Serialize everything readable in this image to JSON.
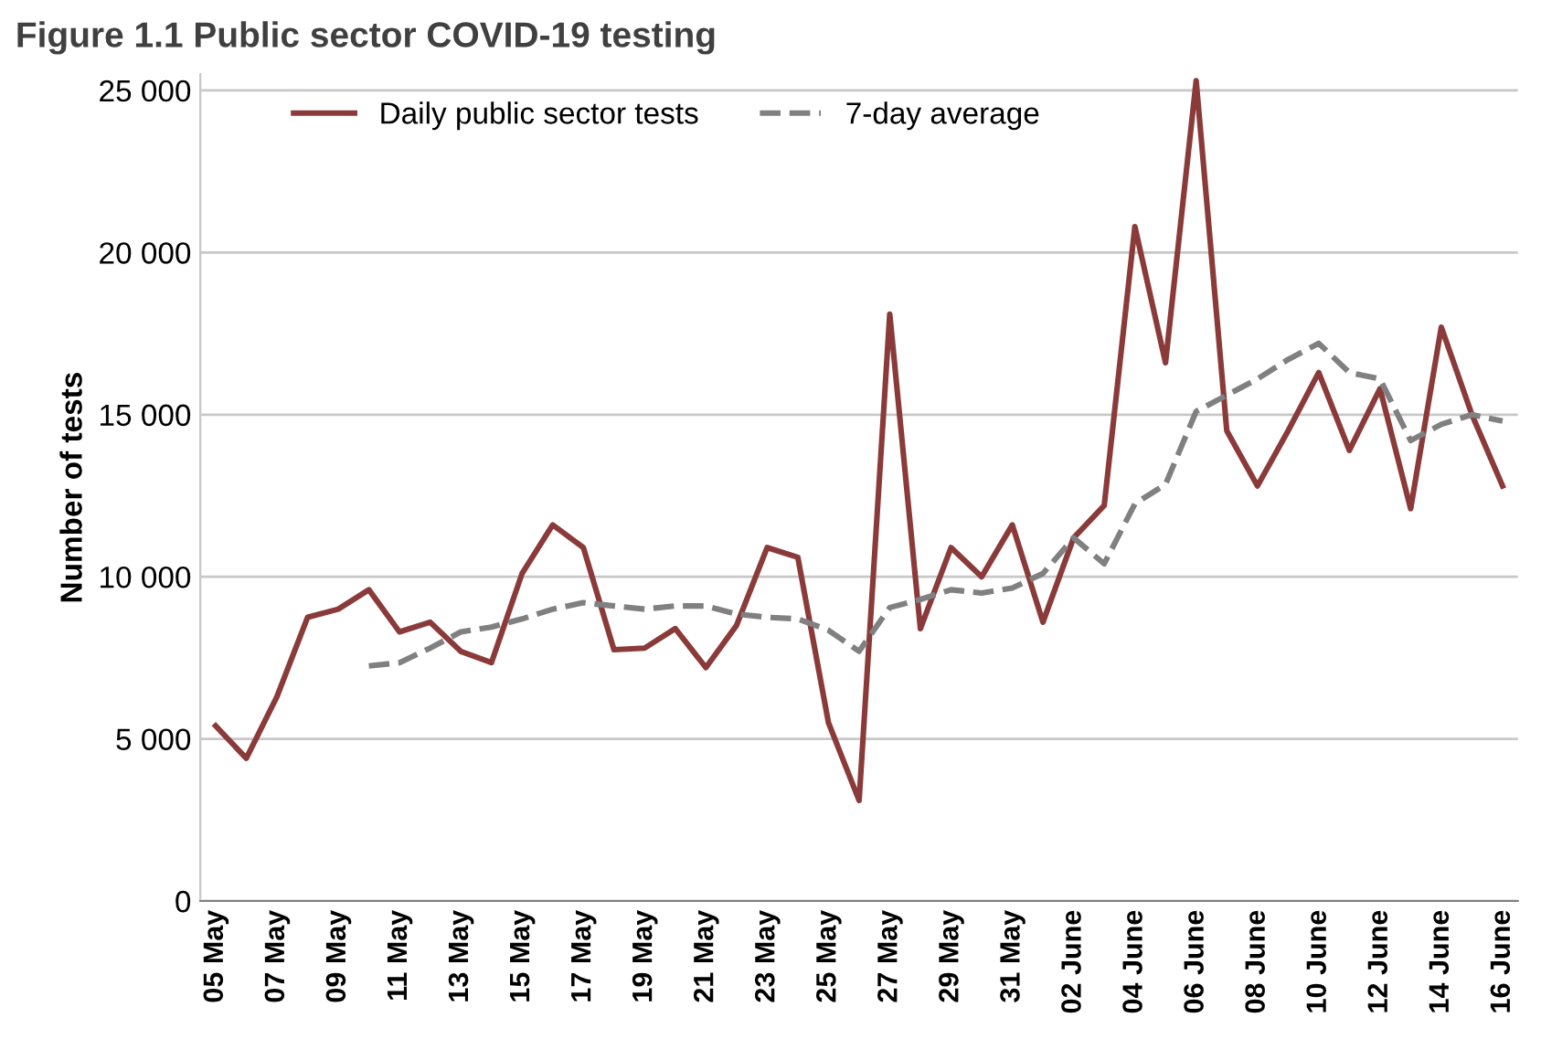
{
  "chart_data": {
    "type": "line",
    "title": "Figure 1.1 Public sector COVID-19 testing",
    "ylabel": "Number of tests",
    "categories": [
      "05 May",
      null,
      "07 May",
      null,
      "09 May",
      null,
      "11 May",
      null,
      "13 May",
      null,
      "15 May",
      null,
      "17 May",
      null,
      "19 May",
      null,
      "21 May",
      null,
      "23 May",
      null,
      "25 May",
      null,
      "27 May",
      null,
      "29 May",
      null,
      "31 May",
      null,
      "02 June",
      null,
      "04 June",
      null,
      "06 June",
      null,
      "08 June",
      null,
      "10 June",
      null,
      "12 June",
      null,
      "14 June",
      null,
      "16 June"
    ],
    "series": [
      {
        "name": "Daily public sector tests",
        "color": "#8b3a3a",
        "line_style": "solid",
        "values": [
          5400,
          4400,
          6300,
          8750,
          9000,
          9600,
          8300,
          8600,
          7700,
          7350,
          10100,
          11600,
          10900,
          7750,
          7800,
          8400,
          7200,
          8500,
          10900,
          10600,
          5500,
          3100,
          18100,
          8400,
          10900,
          10000,
          11600,
          8600,
          11200,
          12200,
          20800,
          16600,
          25300,
          14500,
          12800,
          14500,
          16300,
          13900,
          15800,
          12100,
          17700,
          15000,
          12800
        ]
      },
      {
        "name": "7-day average",
        "color": "#808080",
        "line_style": "dashed",
        "values": [
          null,
          null,
          null,
          null,
          null,
          7250,
          7350,
          7800,
          8300,
          8450,
          8700,
          9000,
          9200,
          9100,
          9000,
          9100,
          9100,
          8850,
          8750,
          8700,
          8350,
          7700,
          9050,
          9300,
          9600,
          9500,
          9650,
          10100,
          11200,
          10400,
          12250,
          12850,
          15100,
          15600,
          16100,
          16700,
          17200,
          16300,
          16100,
          14200,
          14700,
          15000,
          14800
        ]
      }
    ],
    "ylim": [
      0,
      25500
    ],
    "yticks": [
      0,
      {
        "value": 5000,
        "label": "5 000"
      },
      {
        "value": 10000,
        "label": "10 000"
      },
      {
        "value": 15000,
        "label": "15 000"
      },
      {
        "value": 20000,
        "label": "20 000"
      },
      {
        "value": 25000,
        "label": "25 000"
      }
    ],
    "grid": "y",
    "legend": "top left"
  }
}
